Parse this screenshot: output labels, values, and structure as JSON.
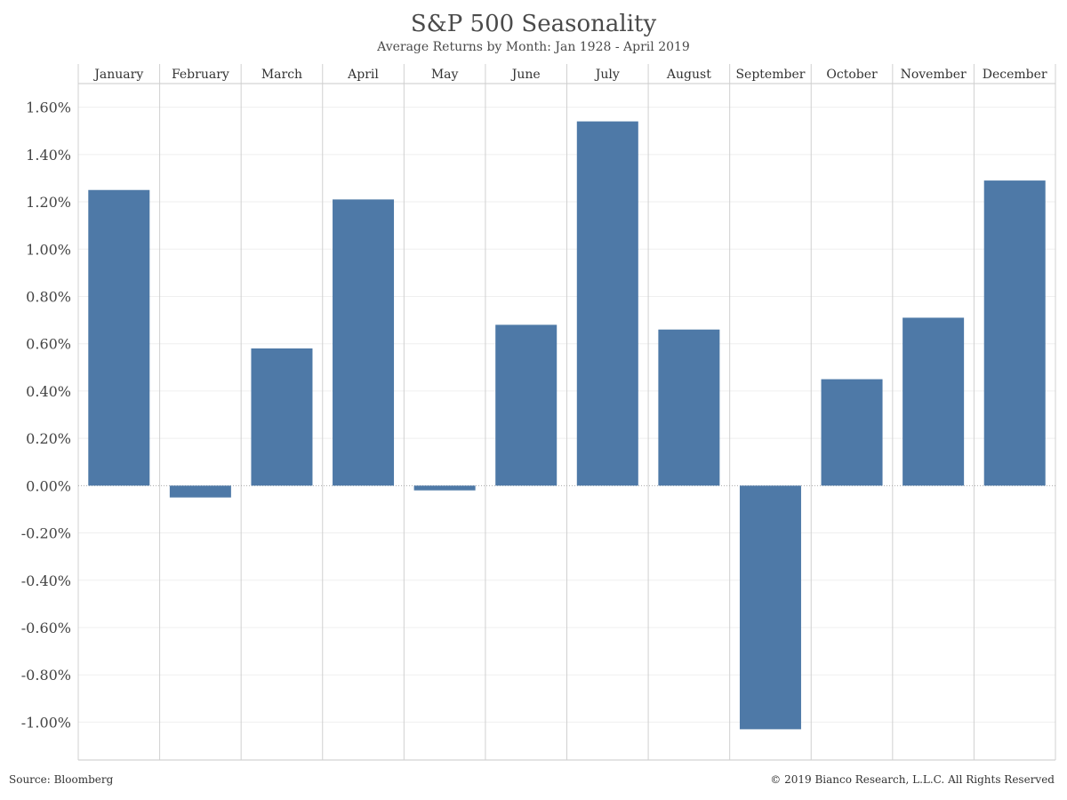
{
  "chart_data": {
    "type": "bar",
    "title": "S&P 500 Seasonality",
    "subtitle": "Average Returns by Month: Jan 1928 - April 2019",
    "categories": [
      "January",
      "February",
      "March",
      "April",
      "May",
      "June",
      "July",
      "August",
      "September",
      "October",
      "November",
      "December"
    ],
    "values": [
      1.25,
      -0.05,
      0.58,
      1.21,
      -0.02,
      0.68,
      1.54,
      0.66,
      -1.03,
      0.45,
      0.71,
      1.29
    ],
    "value_unit": "%",
    "ylim": [
      -1.16,
      1.7
    ],
    "yticks": [
      1.6,
      1.4,
      1.2,
      1.0,
      0.8,
      0.6,
      0.4,
      0.2,
      0.0,
      -0.2,
      -0.4,
      -0.6,
      -0.8,
      -1.0
    ],
    "ytick_labels": [
      "1.60%",
      "1.40%",
      "1.20%",
      "1.00%",
      "0.80%",
      "0.60%",
      "0.40%",
      "0.20%",
      "0.00%",
      "-0.20%",
      "-0.40%",
      "-0.60%",
      "-0.80%",
      "-1.00%"
    ],
    "xlabel": "",
    "ylabel": "",
    "category_labels_position": "top",
    "grid": true,
    "bar_color": "#4e79a7"
  },
  "footer": {
    "source": "Source: Bloomberg",
    "copyright": "© 2019 Bianco Research, L.L.C. All Rights Reserved"
  }
}
